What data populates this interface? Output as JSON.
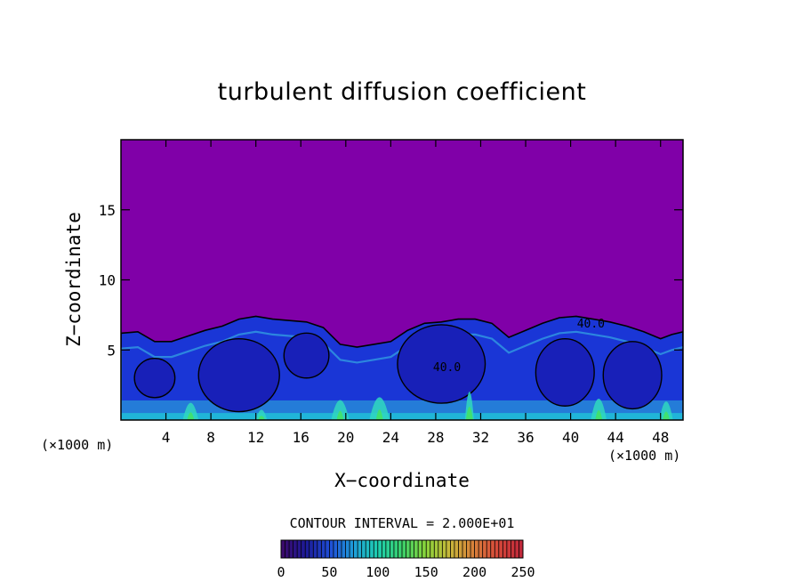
{
  "chart_data": {
    "type": "heatmap",
    "title": "turbulent diffusion coefficient",
    "xlabel": "X−coordinate",
    "ylabel": "Z−coordinate",
    "x_unit_left": "(×1000 m)",
    "x_unit_right": "(×1000 m)",
    "xlim": [
      0,
      50
    ],
    "ylim": [
      0,
      20
    ],
    "x_ticks": [
      4,
      8,
      12,
      16,
      20,
      24,
      28,
      32,
      36,
      40,
      44,
      48
    ],
    "x_tick_labels": [
      "4",
      "8",
      "12",
      "16",
      "20",
      "24",
      "28",
      "32",
      "36",
      "40",
      "44",
      "48"
    ],
    "y_ticks": [
      5,
      10,
      15
    ],
    "y_tick_labels": [
      "5",
      "10",
      "15"
    ],
    "contour_interval_label": "CONTOUR INTERVAL = 2.000E+01",
    "contour_labels": [
      {
        "text": "40.0",
        "x": 41.8,
        "z": 6.6
      },
      {
        "text": "40.0",
        "x": 29.0,
        "z": 3.5
      }
    ],
    "colorbar": {
      "min": 0,
      "max": 250,
      "tick_values": [
        0,
        50,
        100,
        150,
        200,
        250
      ],
      "tick_labels": [
        "0",
        "50",
        "100",
        "150",
        "200",
        "250"
      ],
      "colors": [
        "#3a0a6b",
        "#1c1c9a",
        "#1f4fd8",
        "#1fa0d8",
        "#1fd0b0",
        "#3ad06a",
        "#8ad43a",
        "#c8b83a",
        "#d8803a",
        "#d84a3a",
        "#c0283a"
      ]
    },
    "background_color": "#8000a8",
    "layer_color": "#1a36d6",
    "cloud_top_profile": [
      [
        0,
        6.2
      ],
      [
        1.5,
        6.3
      ],
      [
        3,
        5.6
      ],
      [
        4.5,
        5.6
      ],
      [
        6,
        6.0
      ],
      [
        7.5,
        6.4
      ],
      [
        9,
        6.7
      ],
      [
        10.5,
        7.2
      ],
      [
        12,
        7.4
      ],
      [
        13.5,
        7.2
      ],
      [
        15,
        7.1
      ],
      [
        16.5,
        7.0
      ],
      [
        18,
        6.6
      ],
      [
        19.5,
        5.4
      ],
      [
        21,
        5.2
      ],
      [
        22.5,
        5.4
      ],
      [
        24,
        5.6
      ],
      [
        25.5,
        6.4
      ],
      [
        27,
        6.9
      ],
      [
        28.5,
        7.0
      ],
      [
        30,
        7.2
      ],
      [
        31.5,
        7.2
      ],
      [
        33,
        6.9
      ],
      [
        34.5,
        5.9
      ],
      [
        36,
        6.4
      ],
      [
        37.5,
        6.9
      ],
      [
        39,
        7.3
      ],
      [
        40.5,
        7.4
      ],
      [
        42,
        7.2
      ],
      [
        43.5,
        7.0
      ],
      [
        45,
        6.7
      ],
      [
        46.5,
        6.3
      ],
      [
        48,
        5.8
      ],
      [
        49,
        6.1
      ],
      [
        50,
        6.3
      ]
    ],
    "cells": [
      {
        "cx": 10.5,
        "cz": 3.2,
        "rx": 3.6,
        "rz": 2.6
      },
      {
        "cx": 28.5,
        "cz": 4.0,
        "rx": 3.9,
        "rz": 2.8
      },
      {
        "cx": 39.5,
        "cz": 3.4,
        "rx": 2.6,
        "rz": 2.4
      },
      {
        "cx": 45.5,
        "cz": 3.2,
        "rx": 2.6,
        "rz": 2.4
      },
      {
        "cx": 3.0,
        "cz": 3.0,
        "rx": 1.8,
        "rz": 1.4
      },
      {
        "cx": 16.5,
        "cz": 4.6,
        "rx": 2.0,
        "rz": 1.6
      }
    ],
    "plumes": [
      {
        "x": 6.2,
        "w": 1.4,
        "top": 2.2
      },
      {
        "x": 12.5,
        "w": 1.0,
        "top": 1.2
      },
      {
        "x": 19.5,
        "w": 1.6,
        "top": 2.6
      },
      {
        "x": 23.0,
        "w": 1.8,
        "top": 3.0
      },
      {
        "x": 31.0,
        "w": 0.8,
        "top": 3.8
      },
      {
        "x": 42.5,
        "w": 1.4,
        "top": 2.8
      },
      {
        "x": 48.5,
        "w": 1.2,
        "top": 2.4
      }
    ]
  }
}
